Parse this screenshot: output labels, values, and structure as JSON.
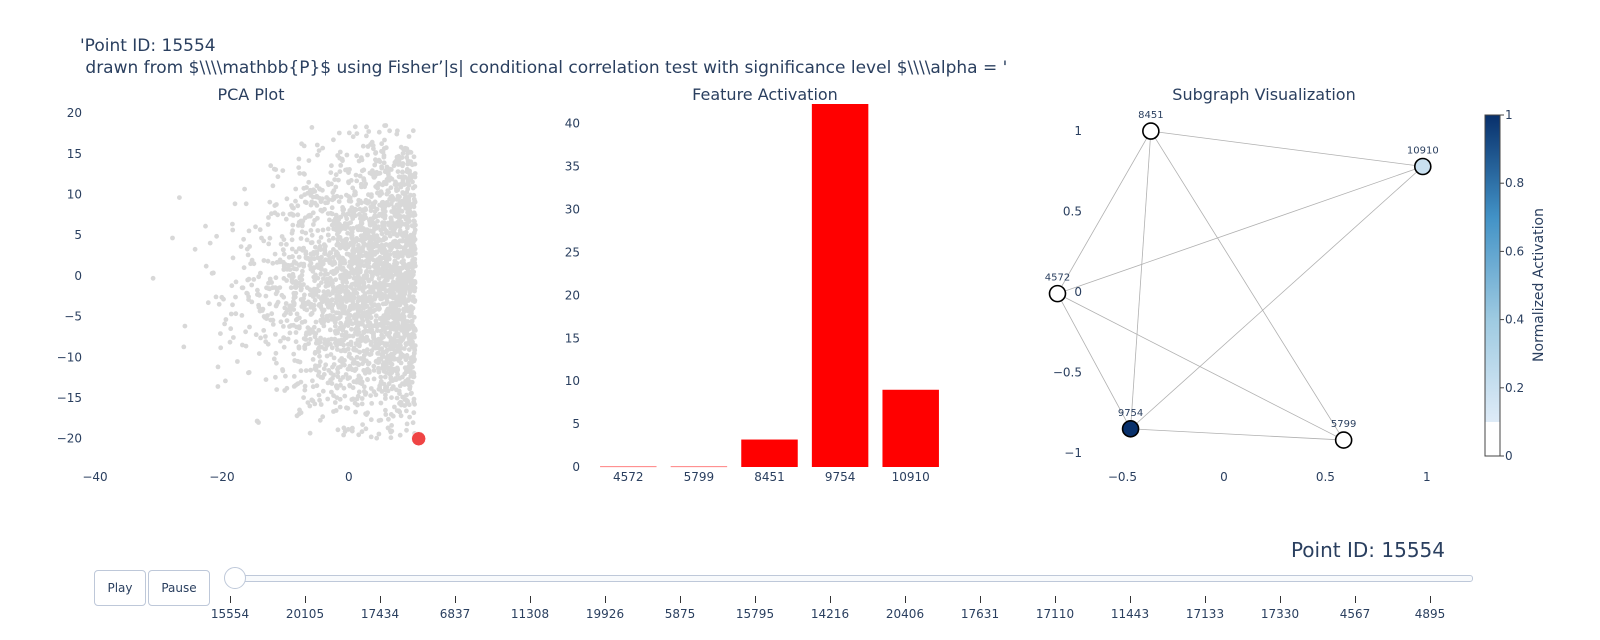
{
  "title": {
    "line1": "'Point ID: 15554",
    "line2": " drawn from $\\\\\\\\mathbb{P}$ using Fisher’|s| conditional correlation test with significance level $\\\\\\\\alpha = '"
  },
  "chart_data": [
    {
      "type": "scatter",
      "title": "PCA Plot",
      "xlim": [
        -40,
        12
      ],
      "ylim": [
        -22,
        21
      ],
      "xticks": [
        -40,
        -20,
        0
      ],
      "yticks": [
        20,
        15,
        10,
        5,
        0,
        -5,
        -10,
        -15,
        -20
      ],
      "xtick_labels": [
        "−40",
        "−20",
        "0"
      ],
      "ytick_labels": [
        "20",
        "15",
        "10",
        "5",
        "0",
        "−5",
        "−10",
        "−15",
        "−20"
      ],
      "background_color": "#d8d8d8",
      "highlight": {
        "x": 11,
        "y": -20,
        "color": "#ef4444"
      }
    },
    {
      "type": "bar",
      "title": "Feature Activation",
      "categories": [
        "4572",
        "5799",
        "8451",
        "9754",
        "10910"
      ],
      "values": [
        0.05,
        0.05,
        3.2,
        42.3,
        9.0
      ],
      "ylim": [
        0,
        42.3
      ],
      "yticks": [
        0,
        5,
        10,
        15,
        20,
        25,
        30,
        35,
        40
      ],
      "color": "#ff0000"
    },
    {
      "type": "network",
      "title": "Subgraph Visualization",
      "xlim": [
        -0.65,
        1.05
      ],
      "ylim": [
        -1.05,
        1.1
      ],
      "xticks": [
        -0.5,
        0,
        0.5,
        1
      ],
      "xtick_labels": [
        "−0.5",
        "0",
        "0.5",
        "1"
      ],
      "yticks": [
        1,
        0.5,
        0,
        -0.5,
        -1
      ],
      "ytick_labels": [
        "1",
        "0.5",
        "0",
        "−0.5",
        "−1"
      ],
      "nodes": [
        {
          "id": "8451",
          "x": -0.36,
          "y": 1.0,
          "activation": 0.0
        },
        {
          "id": "10910",
          "x": 0.98,
          "y": 0.78,
          "activation": 0.2
        },
        {
          "id": "4572",
          "x": -0.82,
          "y": -0.01,
          "activation": 0.0
        },
        {
          "id": "9754",
          "x": -0.46,
          "y": -0.85,
          "activation": 1.0
        },
        {
          "id": "5799",
          "x": 0.59,
          "y": -0.92,
          "activation": 0.0
        }
      ],
      "edges": [
        [
          "8451",
          "10910"
        ],
        [
          "8451",
          "4572"
        ],
        [
          "8451",
          "9754"
        ],
        [
          "8451",
          "5799"
        ],
        [
          "10910",
          "4572"
        ],
        [
          "10910",
          "9754"
        ],
        [
          "4572",
          "9754"
        ],
        [
          "4572",
          "5799"
        ],
        [
          "9754",
          "5799"
        ]
      ],
      "colorbar": {
        "title": "Normalized Activation",
        "ticks": [
          1,
          0.8,
          0.6,
          0.4,
          0.2,
          0
        ],
        "tick_labels": [
          "1",
          "0.8",
          "0.6",
          "0.4",
          "0.2",
          "0"
        ],
        "low_color": "#ffffff",
        "high_color": "#08306b"
      }
    }
  ],
  "controls": {
    "play_label": "Play",
    "pause_label": "Pause",
    "current_label": "Point ID: 15554",
    "slider_steps": [
      "15554",
      "20105",
      "17434",
      "6837",
      "11308",
      "19926",
      "5875",
      "15795",
      "14216",
      "20406",
      "17631",
      "17110",
      "11443",
      "17133",
      "17330",
      "4567",
      "4895"
    ],
    "active_step": 0
  }
}
